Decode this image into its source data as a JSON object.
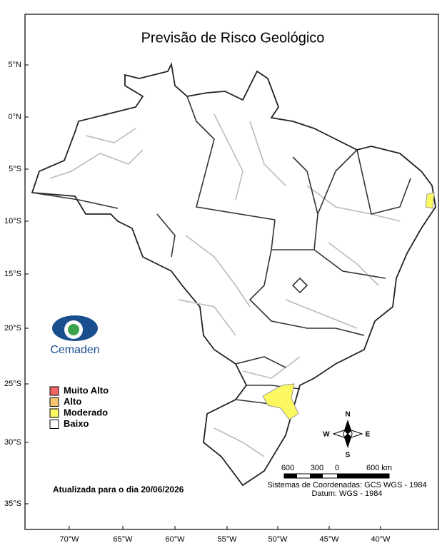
{
  "title": "Previsão de Risco Geológico",
  "latitude_labels": [
    "5°N",
    "0°N",
    "5°S",
    "10°S",
    "15°S",
    "20°S",
    "25°S",
    "30°S",
    "35°S"
  ],
  "longitude_labels": [
    "70°W",
    "65°W",
    "60°W",
    "55°W",
    "50°W",
    "45°W",
    "40°W"
  ],
  "legend": [
    {
      "label": "Muito Alto",
      "color": "#f26464"
    },
    {
      "label": "Alto",
      "color": "#f9c46b"
    },
    {
      "label": "Moderado",
      "color": "#fbf95f"
    },
    {
      "label": "Baixo",
      "color": "#ffffff"
    }
  ],
  "updated": "Atualizada para o dia 20/06/2026",
  "logo": "Cemaden",
  "compass": {
    "north": "N",
    "south": "S",
    "east": "E",
    "west": "W"
  },
  "scale_bar": [
    "600",
    "300",
    "0",
    "600 km"
  ],
  "coordinate_system": "Sistemas de Coordenadas: GCS WGS - 1984",
  "datum": "Datum: WGS - 1984"
}
